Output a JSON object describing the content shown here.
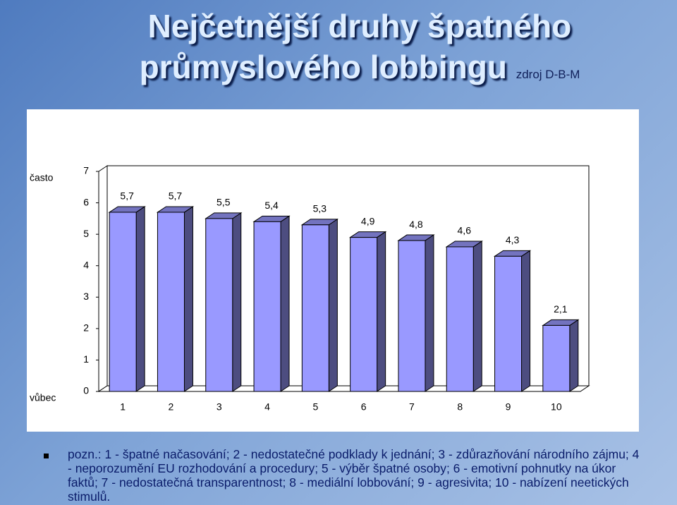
{
  "chart_data": {
    "type": "bar3d",
    "title": "Nejčetnější druhy špatného průmyslového lobbingu",
    "source": "zdroj D-B-M",
    "y_top_label": "často",
    "y_bottom_label": "vůbec",
    "categories": [
      "1",
      "2",
      "3",
      "4",
      "5",
      "6",
      "7",
      "8",
      "9",
      "10"
    ],
    "values": [
      5.7,
      5.7,
      5.5,
      5.4,
      5.3,
      4.9,
      4.8,
      4.6,
      4.3,
      2.1
    ],
    "value_labels": [
      "5,7",
      "5,7",
      "5,5",
      "5,4",
      "5,3",
      "4,9",
      "4,8",
      "4,6",
      "4,3",
      "2,1"
    ],
    "color": "#9999ff",
    "ylim": [
      0,
      7
    ],
    "yticks": [
      0,
      1,
      2,
      3,
      4,
      5,
      6,
      7
    ],
    "note": "pozn.: 1 - špatné načasování; 2 - nedostatečné podklady k jednání; 3 - zdůrazňování národního zájmu; 4 - neporozumění EU rozhodování a procedury; 5 - výběr špatné osoby; 6 - emotivní pohnutky na úkor faktů; 7 - nedostatečná transparentnost; 8 - mediální lobbování; 9 - agresivita; 10 - nabízení neetických stimulů."
  }
}
